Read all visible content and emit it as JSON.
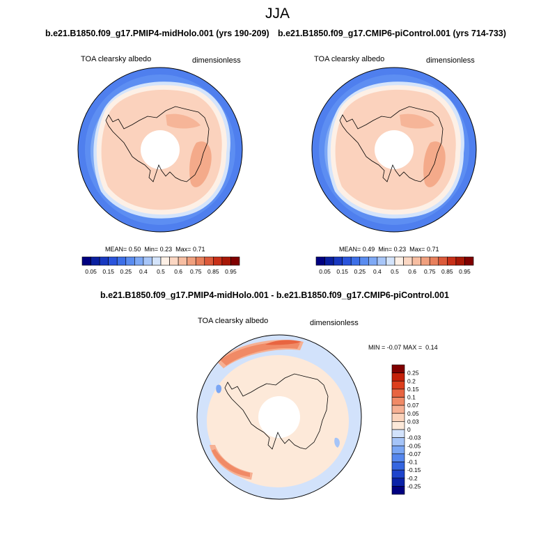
{
  "season": "JJA",
  "panels": {
    "left": {
      "title": "b.e21.B1850.f09_g17.PMIP4-midHolo.001 (yrs 190-209)",
      "variable": "TOA clearsky albedo",
      "units": "dimensionless",
      "stats": {
        "mean_label": "MEAN=",
        "mean": "0.50",
        "min_label": "Min=",
        "min": "0.23",
        "max_label": "Max=",
        "max": "0.71"
      }
    },
    "right": {
      "title": "b.e21.B1850.f09_g17.CMIP6-piControl.001 (yrs 714-733)",
      "variable": "TOA clearsky albedo",
      "units": "dimensionless",
      "stats": {
        "mean_label": "MEAN=",
        "mean": "0.49",
        "min_label": "Min=",
        "min": "0.23",
        "max_label": "Max=",
        "max": "0.71"
      }
    },
    "diff": {
      "title": "b.e21.B1850.f09_g17.PMIP4-midHolo.001 - b.e21.B1850.f09_g17.CMIP6-piControl.001",
      "variable": "TOA clearsky albedo",
      "units": "dimensionless",
      "stats": {
        "min_label": "MIN =",
        "min": "-0.07",
        "max_label": "MAX =",
        "max": "0.14"
      }
    }
  },
  "colors": {
    "albedo_scale": [
      "#000080",
      "#0a1fa0",
      "#1838c0",
      "#2a54dc",
      "#3d6fe8",
      "#5a8cf0",
      "#7ea9f5",
      "#a8c6f8",
      "#d4e4fb",
      "#fdf0e6",
      "#fbd7c3",
      "#f7bea2",
      "#f0a07e",
      "#e8805c",
      "#dc5a3a",
      "#c83018",
      "#a81806",
      "#800000"
    ],
    "diff_scale": [
      "#000080",
      "#0a22a8",
      "#1e44cc",
      "#3566e0",
      "#5587ee",
      "#7aa6f4",
      "#a5c4f8",
      "#d2e2fb",
      "#fde9d9",
      "#fbd3bb",
      "#f6b093",
      "#f08a66",
      "#e86440",
      "#dc3e1c",
      "#c42008",
      "#800000"
    ],
    "land_outline": "#000000"
  },
  "chart_data": [
    {
      "type": "heatmap",
      "projection": "south polar stereographic",
      "title": "b.e21.B1850.f09_g17.PMIP4-midHolo.001 (yrs 190-209)",
      "variable": "TOA clearsky albedo",
      "units": "dimensionless",
      "colorbar_levels": [
        0.05,
        0.1,
        0.15,
        0.2,
        0.25,
        0.3,
        0.4,
        0.45,
        0.5,
        0.6,
        0.65,
        0.7,
        0.75,
        0.8,
        0.85,
        0.9,
        0.95
      ],
      "colorbar_tick_labels": [
        "0.05",
        "0.15",
        "0.25",
        "0.4",
        "0.5",
        "0.6",
        "0.75",
        "0.85",
        "0.95"
      ],
      "mean": 0.5,
      "min": 0.23,
      "max": 0.71
    },
    {
      "type": "heatmap",
      "projection": "south polar stereographic",
      "title": "b.e21.B1850.f09_g17.CMIP6-piControl.001 (yrs 714-733)",
      "variable": "TOA clearsky albedo",
      "units": "dimensionless",
      "colorbar_levels": [
        0.05,
        0.1,
        0.15,
        0.2,
        0.25,
        0.3,
        0.4,
        0.45,
        0.5,
        0.6,
        0.65,
        0.7,
        0.75,
        0.8,
        0.85,
        0.9,
        0.95
      ],
      "colorbar_tick_labels": [
        "0.05",
        "0.15",
        "0.25",
        "0.4",
        "0.5",
        "0.6",
        "0.75",
        "0.85",
        "0.95"
      ],
      "mean": 0.49,
      "min": 0.23,
      "max": 0.71
    },
    {
      "type": "heatmap",
      "projection": "south polar stereographic",
      "title": "b.e21.B1850.f09_g17.PMIP4-midHolo.001 - b.e21.B1850.f09_g17.CMIP6-piControl.001",
      "variable": "TOA clearsky albedo",
      "units": "dimensionless",
      "colorbar_tick_labels": [
        "0.25",
        "0.2",
        "0.15",
        "0.1",
        "0.07",
        "0.05",
        "0.03",
        "0",
        "-0.03",
        "-0.05",
        "-0.07",
        "-0.1",
        "-0.15",
        "-0.2",
        "-0.25"
      ],
      "min": -0.07,
      "max": 0.14
    }
  ]
}
